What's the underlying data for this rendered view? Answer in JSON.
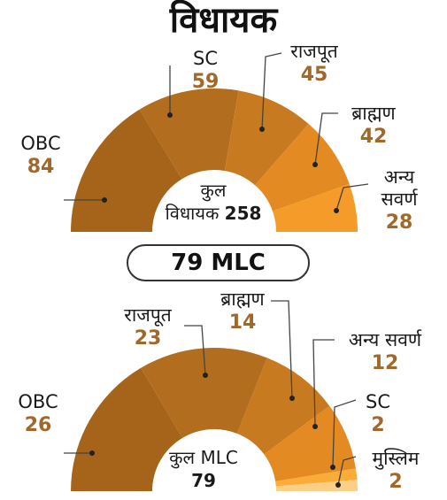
{
  "title": "विधायक",
  "pill": "79 MLC",
  "palette": [
    "#a6641a",
    "#b26d1e",
    "#c77a20",
    "#e38a22",
    "#f49b2a",
    "#fbab38",
    "#fccf87"
  ],
  "chart_data": [
    {
      "type": "pie",
      "variant": "half-donut",
      "categories": [
        "OBC",
        "SC",
        "राजपूत",
        "ब्राह्मण",
        "अन्य सवर्ण"
      ],
      "values": [
        84,
        59,
        45,
        42,
        28
      ],
      "center_label": "कुल",
      "center_label_2": "विधायक",
      "center_value": "258"
    },
    {
      "type": "pie",
      "variant": "half-donut",
      "categories": [
        "OBC",
        "राजपूत",
        "ब्राह्मण",
        "अन्य सवर्ण",
        "SC",
        "मुस्लिम"
      ],
      "values": [
        26,
        23,
        14,
        12,
        2,
        2
      ],
      "center_label": "कुल MLC",
      "center_value": "79"
    }
  ],
  "labels_top": [
    {
      "name": "OBC",
      "value": "84"
    },
    {
      "name": "SC",
      "value": "59"
    },
    {
      "name": "राजपूत",
      "value": "45"
    },
    {
      "name": "ब्राह्मण",
      "value": "42"
    },
    {
      "name": "अन्य",
      "name2": "सवर्ण",
      "value": "28"
    }
  ],
  "labels_bottom": [
    {
      "name": "OBC",
      "value": "26"
    },
    {
      "name": "राजपूत",
      "value": "23"
    },
    {
      "name": "ब्राह्मण",
      "value": "14"
    },
    {
      "name": "अन्य सवर्ण",
      "value": "12"
    },
    {
      "name": "SC",
      "value": "2"
    },
    {
      "name": "मुस्लिम",
      "value": "2"
    }
  ]
}
